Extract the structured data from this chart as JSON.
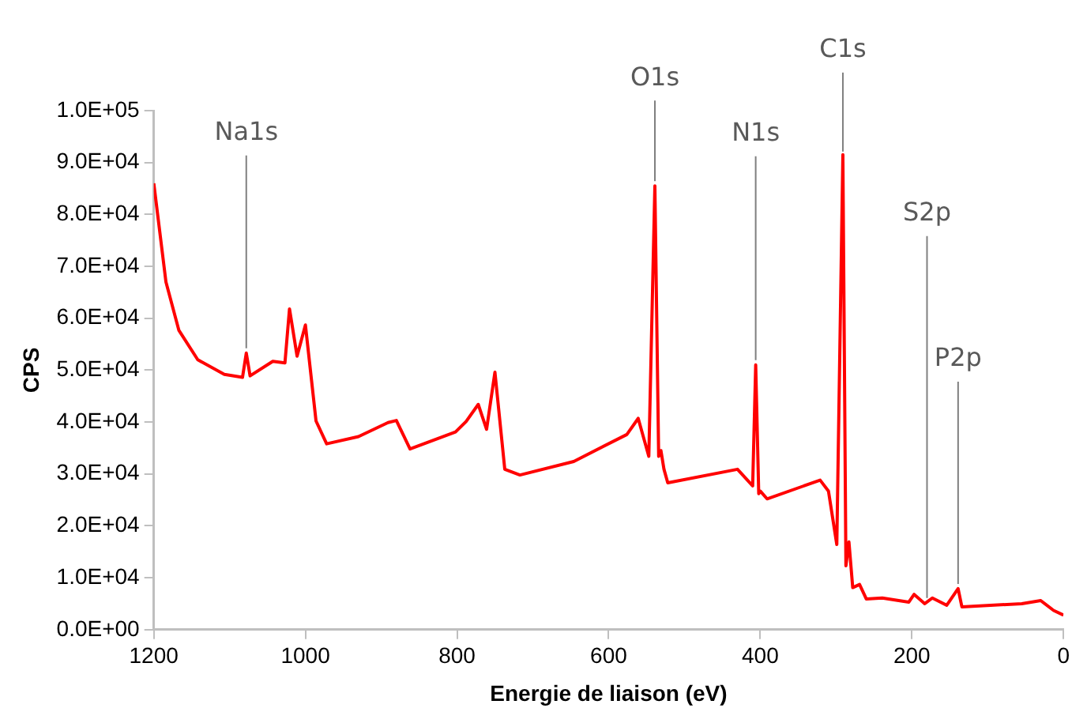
{
  "chart_data": {
    "type": "line",
    "xlabel": "Energie de liaison (eV)",
    "ylabel": "CPS",
    "xlim": [
      1200,
      0
    ],
    "xticks": [
      1200,
      1000,
      800,
      600,
      400,
      200,
      0
    ],
    "ylim": [
      0,
      100000
    ],
    "yticks": [
      {
        "value": 0,
        "label": "0.0E+00"
      },
      {
        "value": 10000,
        "label": "1.0E+04"
      },
      {
        "value": 20000,
        "label": "2.0E+04"
      },
      {
        "value": 30000,
        "label": "3.0E+04"
      },
      {
        "value": 40000,
        "label": "4.0E+04"
      },
      {
        "value": 50000,
        "label": "5.0E+04"
      },
      {
        "value": 60000,
        "label": "6.0E+04"
      },
      {
        "value": 70000,
        "label": "7.0E+04"
      },
      {
        "value": 80000,
        "label": "8.0E+04"
      },
      {
        "value": 90000,
        "label": "9.0E+04"
      },
      {
        "value": 100000,
        "label": "1.0E+05"
      }
    ],
    "grid": false,
    "legend": false,
    "marker": "none",
    "line_style": "solid",
    "series": [
      {
        "color": "#ff0000",
        "x": [
          1200,
          1184,
          1167,
          1142,
          1107,
          1083,
          1078,
          1073,
          1043,
          1027,
          1021,
          1011,
          1000,
          986,
          972,
          930,
          891,
          880,
          862,
          802,
          788,
          772,
          761,
          750,
          737,
          717,
          646,
          576,
          561,
          547,
          539,
          534,
          531,
          527,
          522,
          430,
          410,
          406,
          402,
          400,
          391,
          321,
          310,
          299,
          291,
          287,
          283,
          278,
          269,
          260,
          239,
          204,
          197,
          183,
          173,
          154,
          139,
          134,
          55,
          30,
          13,
          0
        ],
        "values": [
          86000,
          67000,
          57700,
          52000,
          49200,
          48600,
          53300,
          48900,
          51700,
          51400,
          61800,
          52700,
          58700,
          40200,
          35800,
          37200,
          39900,
          40300,
          34800,
          38100,
          40100,
          43400,
          38600,
          49600,
          30900,
          29800,
          32400,
          37600,
          40700,
          33400,
          85500,
          33400,
          34500,
          30900,
          28300,
          30900,
          27700,
          51000,
          26200,
          26700,
          25200,
          28800,
          26700,
          16400,
          91500,
          12300,
          16900,
          8100,
          8700,
          5900,
          6100,
          5300,
          6800,
          5000,
          6100,
          4700,
          7900,
          4400,
          5000,
          5600,
          3700,
          2800
        ]
      }
    ],
    "annotations": [
      {
        "text": "Na1s",
        "x": 1078,
        "y": 53300
      },
      {
        "text": "O1s",
        "x": 539,
        "y": 85500
      },
      {
        "text": "N1s",
        "x": 406,
        "y": 51000
      },
      {
        "text": "C1s",
        "x": 291,
        "y": 91500
      },
      {
        "text": "S2p",
        "x": 180,
        "y": 5500
      },
      {
        "text": "P2p",
        "x": 139,
        "y": 7900
      }
    ]
  }
}
